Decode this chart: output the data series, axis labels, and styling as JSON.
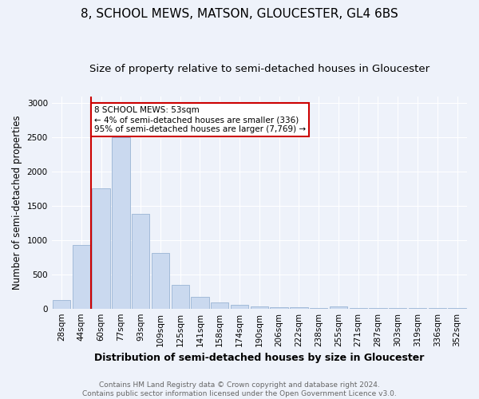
{
  "title": "8, SCHOOL MEWS, MATSON, GLOUCESTER, GL4 6BS",
  "subtitle": "Size of property relative to semi-detached houses in Gloucester",
  "xlabel": "Distribution of semi-detached houses by size in Gloucester",
  "ylabel": "Number of semi-detached properties",
  "categories": [
    "28sqm",
    "44sqm",
    "60sqm",
    "77sqm",
    "93sqm",
    "109sqm",
    "125sqm",
    "141sqm",
    "158sqm",
    "174sqm",
    "190sqm",
    "206sqm",
    "222sqm",
    "238sqm",
    "255sqm",
    "271sqm",
    "287sqm",
    "303sqm",
    "319sqm",
    "336sqm",
    "352sqm"
  ],
  "values": [
    130,
    930,
    1760,
    2500,
    1380,
    810,
    340,
    175,
    95,
    50,
    30,
    20,
    15,
    10,
    30,
    10,
    8,
    5,
    5,
    5,
    5
  ],
  "bar_color": "#cad9ef",
  "bar_edge_color": "#9ab4d4",
  "vline_x": 1.5,
  "annotation_title": "8 SCHOOL MEWS: 53sqm",
  "annotation_line1": "← 4% of semi-detached houses are smaller (336)",
  "annotation_line2": "95% of semi-detached houses are larger (7,769) →",
  "annotation_box_color": "#ffffff",
  "annotation_box_edge": "#cc0000",
  "vline_color": "#cc0000",
  "footer": "Contains HM Land Registry data © Crown copyright and database right 2024.\nContains public sector information licensed under the Open Government Licence v3.0.",
  "ylim": [
    0,
    3100
  ],
  "yticks": [
    0,
    500,
    1000,
    1500,
    2000,
    2500,
    3000
  ],
  "bg_color": "#eef2fa",
  "title_fontsize": 11,
  "subtitle_fontsize": 9.5,
  "xlabel_fontsize": 9,
  "ylabel_fontsize": 8.5,
  "tick_fontsize": 7.5,
  "footer_fontsize": 6.5,
  "annot_fontsize": 7.5
}
